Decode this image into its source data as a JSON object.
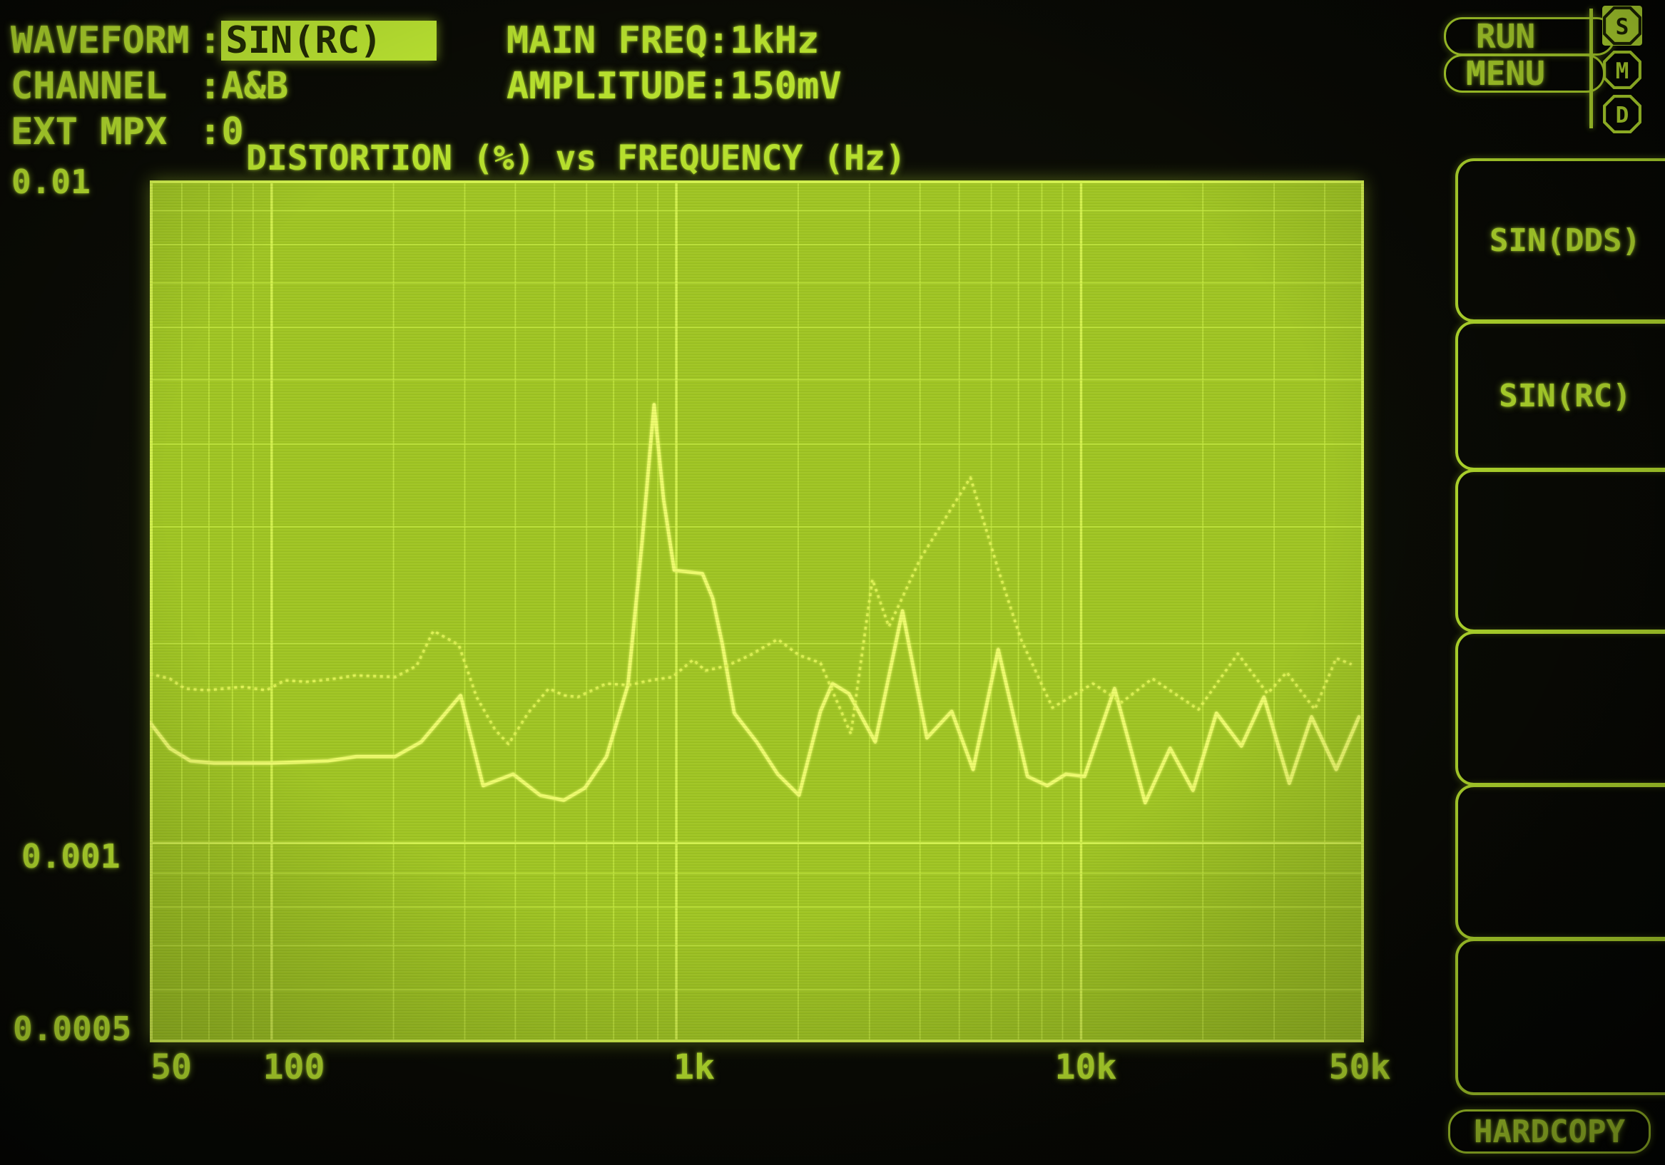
{
  "title": "DISTORTION (%) vs FREQUENCY (Hz)",
  "settings": {
    "colon": ":",
    "waveform_label": "WAVEFORM",
    "waveform_value": "SIN(RC)",
    "channel_label": "CHANNEL",
    "channel_value": "A&B",
    "ext_mpx_label": "EXT MPX",
    "ext_mpx_value": "0",
    "main_freq_label": "MAIN FREQ",
    "main_freq_value": "1kHz",
    "amplitude_label": "AMPLITUDE",
    "amplitude_value": "150mV"
  },
  "axes": {
    "y_labels": [
      {
        "text": "0.01",
        "value": 0.01
      },
      {
        "text": "0.001",
        "value": 0.001
      },
      {
        "text": "0.0005",
        "value": 0.0005
      }
    ],
    "x_labels": [
      {
        "text": "50",
        "value": 50
      },
      {
        "text": "100",
        "value": 100
      },
      {
        "text": "1k",
        "value": 1000
      },
      {
        "text": "10k",
        "value": 10000
      },
      {
        "text": "50k",
        "value": 50000
      }
    ]
  },
  "controls": {
    "run_label": "RUN",
    "menu_label": "MENU",
    "hardcopy_label": "HARDCOPY",
    "badges": [
      {
        "letter": "S",
        "selected": true
      },
      {
        "letter": "M",
        "selected": false
      },
      {
        "letter": "D",
        "selected": false
      }
    ],
    "softkeys": [
      "SIN(DDS)",
      "SIN(RC)",
      "",
      "",
      "",
      ""
    ]
  },
  "chart_data": {
    "type": "line",
    "title": "DISTORTION (%) vs FREQUENCY (Hz)",
    "xlabel": "FREQUENCY (Hz)",
    "ylabel": "DISTORTION (%)",
    "x_scale": "log",
    "y_scale": "log",
    "xlim": [
      50,
      50000
    ],
    "ylim": [
      0.0005,
      0.01
    ],
    "grid": true,
    "legend": "none",
    "x_gridlines": {
      "major": [
        100,
        1000,
        10000
      ],
      "minor": [
        60,
        70,
        80,
        90,
        200,
        300,
        400,
        500,
        600,
        700,
        800,
        900,
        2000,
        3000,
        4000,
        5000,
        6000,
        7000,
        8000,
        9000,
        20000,
        30000,
        40000
      ]
    },
    "y_gridlines": {
      "major": [
        0.001
      ],
      "minor": [
        0.0006,
        0.0007,
        0.0008,
        0.0009,
        0.002,
        0.003,
        0.004,
        0.005,
        0.006,
        0.007,
        0.008,
        0.009
      ]
    },
    "series": [
      {
        "name": "SIN(RC)",
        "style": "solid",
        "points": [
          [
            50,
            0.00152
          ],
          [
            56,
            0.00139
          ],
          [
            63,
            0.00133
          ],
          [
            72,
            0.00132
          ],
          [
            100,
            0.00132
          ],
          [
            138,
            0.00133
          ],
          [
            162,
            0.00135
          ],
          [
            202,
            0.00135
          ],
          [
            234,
            0.00142
          ],
          [
            293,
            0.00167
          ],
          [
            333,
            0.00122
          ],
          [
            395,
            0.00127
          ],
          [
            461,
            0.00118
          ],
          [
            527,
            0.00116
          ],
          [
            594,
            0.00121
          ],
          [
            672,
            0.00135
          ],
          [
            759,
            0.00173
          ],
          [
            823,
            0.00285
          ],
          [
            881,
            0.00459
          ],
          [
            930,
            0.0033
          ],
          [
            988,
            0.00258
          ],
          [
            1160,
            0.00255
          ],
          [
            1230,
            0.00234
          ],
          [
            1300,
            0.00199
          ],
          [
            1390,
            0.00157
          ],
          [
            1580,
            0.00142
          ],
          [
            1780,
            0.00127
          ],
          [
            2010,
            0.00118
          ],
          [
            2270,
            0.00158
          ],
          [
            2430,
            0.00174
          ],
          [
            2670,
            0.00168
          ],
          [
            3100,
            0.00142
          ],
          [
            3620,
            0.00224
          ],
          [
            4160,
            0.00144
          ],
          [
            4790,
            0.00158
          ],
          [
            5410,
            0.00129
          ],
          [
            6240,
            0.00196
          ],
          [
            7370,
            0.00126
          ],
          [
            8250,
            0.00122
          ],
          [
            9170,
            0.00127
          ],
          [
            10200,
            0.00126
          ],
          [
            12100,
            0.00171
          ],
          [
            14400,
            0.00115
          ],
          [
            16600,
            0.00139
          ],
          [
            18900,
            0.0012
          ],
          [
            21600,
            0.00157
          ],
          [
            24900,
            0.0014
          ],
          [
            28300,
            0.00166
          ],
          [
            32700,
            0.00123
          ],
          [
            37100,
            0.00155
          ],
          [
            42700,
            0.00129
          ],
          [
            48600,
            0.00155
          ]
        ]
      },
      {
        "name": "SIN(DDS)",
        "style": "dotted",
        "points": [
          [
            50,
            0.0018
          ],
          [
            56,
            0.00177
          ],
          [
            61,
            0.00171
          ],
          [
            69,
            0.0017
          ],
          [
            85,
            0.00172
          ],
          [
            97,
            0.0017
          ],
          [
            108,
            0.00176
          ],
          [
            122,
            0.00175
          ],
          [
            144,
            0.00177
          ],
          [
            161,
            0.00179
          ],
          [
            202,
            0.00178
          ],
          [
            228,
            0.00185
          ],
          [
            251,
            0.00209
          ],
          [
            290,
            0.00199
          ],
          [
            321,
            0.00166
          ],
          [
            357,
            0.00148
          ],
          [
            385,
            0.00141
          ],
          [
            430,
            0.00157
          ],
          [
            484,
            0.00171
          ],
          [
            527,
            0.00167
          ],
          [
            571,
            0.00166
          ],
          [
            672,
            0.00174
          ],
          [
            759,
            0.00173
          ],
          [
            866,
            0.00176
          ],
          [
            977,
            0.00178
          ],
          [
            1100,
            0.00189
          ],
          [
            1180,
            0.00182
          ],
          [
            1330,
            0.00185
          ],
          [
            1520,
            0.00192
          ],
          [
            1780,
            0.00203
          ],
          [
            2010,
            0.00192
          ],
          [
            2270,
            0.00187
          ],
          [
            2700,
            0.00146
          ],
          [
            3050,
            0.0025
          ],
          [
            3350,
            0.00212
          ],
          [
            4000,
            0.00268
          ],
          [
            5330,
            0.00356
          ],
          [
            6250,
            0.00258
          ],
          [
            7100,
            0.00203
          ],
          [
            8500,
            0.0016
          ],
          [
            10700,
            0.00174
          ],
          [
            12600,
            0.00163
          ],
          [
            15000,
            0.00177
          ],
          [
            19500,
            0.00159
          ],
          [
            24400,
            0.00193
          ],
          [
            28900,
            0.00168
          ],
          [
            32200,
            0.00181
          ],
          [
            37800,
            0.00159
          ],
          [
            42700,
            0.0019
          ],
          [
            46600,
            0.00186
          ]
        ]
      }
    ]
  },
  "colors": {
    "text_green": "#b6df2e",
    "plot_bg": "#a0c524",
    "grid": "#c3e740",
    "grid_major": "#d2f04e",
    "trace_solid": "#eefb6e",
    "trace_dotted": "#def254",
    "highlight_bg": "#bce632",
    "highlight_text": "#222b05",
    "screen_bg": "#0a0b05"
  }
}
